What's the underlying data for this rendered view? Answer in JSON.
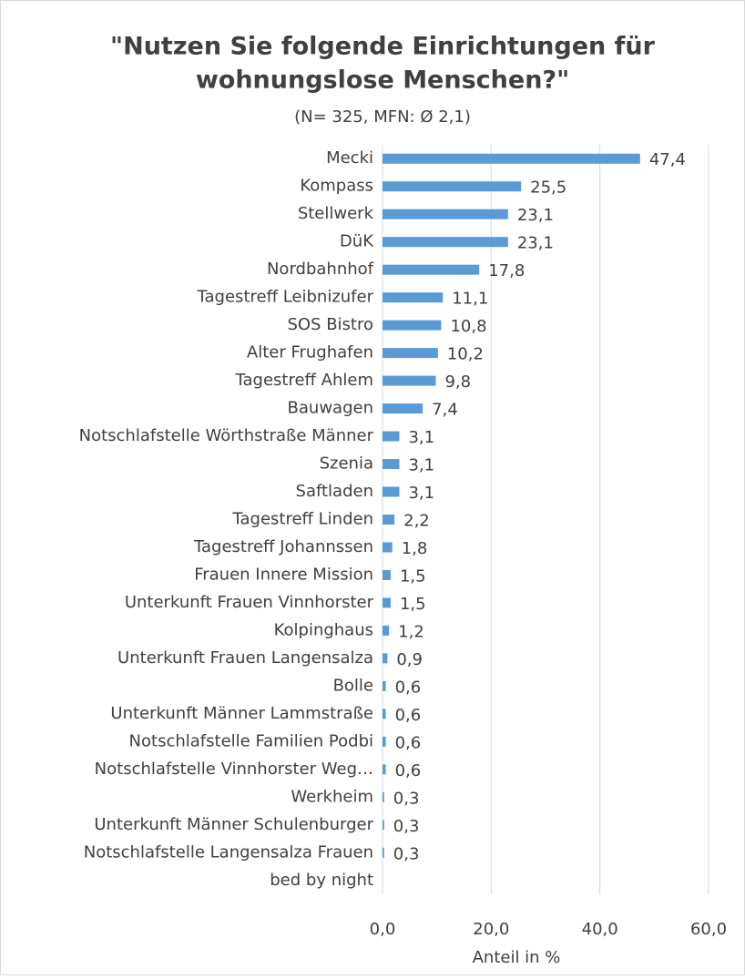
{
  "chart_data": {
    "type": "bar",
    "orientation": "horizontal",
    "title": [
      "\"Nutzen Sie folgende Einrichtungen für",
      "wohnungslose Menschen?\""
    ],
    "subtitle": "(N= 325, MFN:  Ø 2,1)",
    "x_label": "Anteil in %",
    "categories": [
      "Mecki",
      "Kompass",
      "Stellwerk",
      "DüK",
      "Nordbahnhof",
      "Tagestreff Leibnizufer",
      "SOS Bistro",
      "Alter Frughafen",
      "Tagestreff Ahlem",
      "Bauwagen",
      "Notschlafstelle Wörthstraße Männer",
      "Szenia",
      "Saftladen",
      "Tagestreff Linden",
      "Tagestreff Johannssen",
      "Frauen Innere Mission",
      "Unterkunft Frauen Vinnhorster",
      "Kolpinghaus",
      "Unterkunft Frauen Langensalza",
      "Bolle",
      "Unterkunft Männer Lammstraße",
      "Notschlafstelle Familien Podbi",
      "Notschlafstelle Vinnhorster Weg…",
      "Werkheim",
      "Unterkunft Männer Schulenburger",
      "Notschlafstelle Langensalza Frauen",
      "bed by night"
    ],
    "values": [
      47.4,
      25.5,
      23.1,
      23.1,
      17.8,
      11.1,
      10.8,
      10.2,
      9.8,
      7.4,
      3.1,
      3.1,
      3.1,
      2.2,
      1.8,
      1.5,
      1.5,
      1.2,
      0.9,
      0.6,
      0.6,
      0.6,
      0.6,
      0.3,
      0.3,
      0.3,
      null
    ],
    "value_labels": [
      "47,4",
      "25,5",
      "23,1",
      "23,1",
      "17,8",
      "11,1",
      "10,8",
      "10,2",
      "9,8",
      "7,4",
      "3,1",
      "3,1",
      "3,1",
      "2,2",
      "1,8",
      "1,5",
      "1,5",
      "1,2",
      "0,9",
      "0,6",
      "0,6",
      "0,6",
      "0,6",
      "0,3",
      "0,3",
      "0,3",
      null
    ],
    "color": "#5b9bd5",
    "xlim": [
      0,
      60
    ],
    "xticks": [
      {
        "value": 0,
        "label": "0,0"
      },
      {
        "value": 20,
        "label": "20,0"
      },
      {
        "value": 40,
        "label": "40,0"
      },
      {
        "value": 60,
        "label": "60,0"
      }
    ],
    "grid": true
  }
}
